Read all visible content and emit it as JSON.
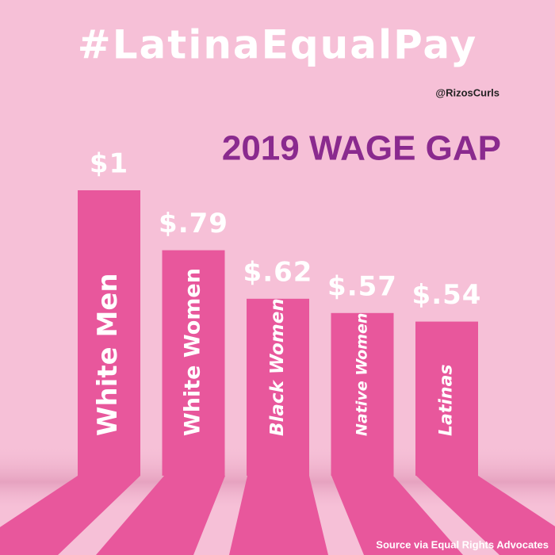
{
  "chart_data": {
    "type": "bar",
    "title": "#LatinaEqualPay",
    "credit": "@RizosCurls",
    "subtitle": "2019 WAGE GAP",
    "source": "Source via Equal Rights Advocates",
    "categories": [
      "White Men",
      "White Women",
      "Black Women",
      "Native Women",
      "Latinas"
    ],
    "values": [
      1,
      0.79,
      0.62,
      0.57,
      0.54
    ],
    "value_labels": [
      "$1",
      "$.79",
      "$.62",
      "$.57",
      "$.54"
    ],
    "color": "#e8579c",
    "ylim": [
      0,
      1
    ]
  }
}
